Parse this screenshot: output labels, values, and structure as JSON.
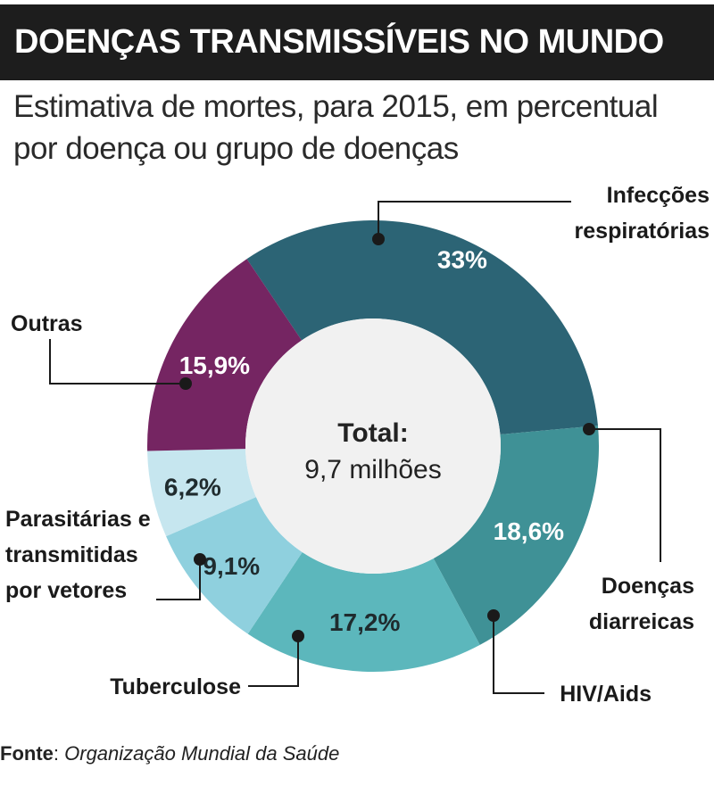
{
  "header": {
    "title": "DOENÇAS TRANSMISSÍVEIS NO MUNDO",
    "subtitle": "Estimativa de mortes, para 2015, em percentual por doença ou grupo de doenças"
  },
  "center": {
    "label": "Total:",
    "value": "9,7 milhões"
  },
  "source": {
    "label": "Fonte",
    "text": "Organização Mundial da Saúde"
  },
  "colors": {
    "respiratorias": "#2c6475",
    "diarreicas": "#3f9196",
    "hiv": "#5cb7bc",
    "tuberculose": "#8fd0de",
    "parasitarias": "#c6e6ef",
    "outras": "#752562",
    "center_fill": "#f1f1f1"
  },
  "chart_data": {
    "type": "pie",
    "donut": true,
    "title": "DOENÇAS TRANSMISSÍVEIS NO MUNDO",
    "subtitle": "Estimativa de mortes, para 2015, em percentual por doença ou grupo de doenças",
    "categories": [
      "Infecções respiratórias",
      "Doenças diarreicas",
      "HIV/Aids",
      "Tuberculose",
      "Parasitárias e transmitidas por vetores",
      "Outras"
    ],
    "values": [
      33,
      18.6,
      17.2,
      9.1,
      6.2,
      15.9
    ],
    "value_labels": [
      "33%",
      "18,6%",
      "17,2%",
      "9,1%",
      "6,2%",
      "15,9%"
    ],
    "category_lines": [
      [
        "Infecções",
        "respiratórias"
      ],
      [
        "Doenças",
        "diarreicas"
      ],
      [
        "HIV/Aids"
      ],
      [
        "Tuberculose"
      ],
      [
        "Parasitárias e",
        "transmitidas",
        "por vetores"
      ],
      [
        "Outras"
      ]
    ],
    "center_text": [
      "Total:",
      "9,7 milhões"
    ]
  }
}
